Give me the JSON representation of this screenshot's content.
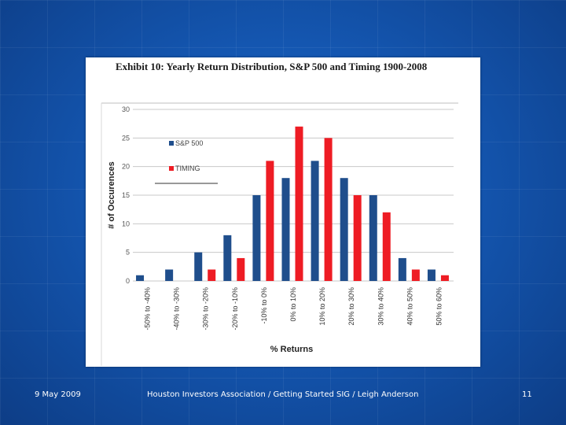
{
  "chart_data": {
    "type": "bar",
    "title": "Exhibit 10: Yearly Return Distribution, S&P 500 and Timing 1900-2008",
    "xlabel": "% Returns",
    "ylabel": "# of Occurences",
    "ylim": [
      0,
      30
    ],
    "yticks": [
      "0",
      "5",
      "10",
      "15",
      "20",
      "25",
      "30"
    ],
    "grid": true,
    "legend_position": "top-left",
    "categories": [
      "-50% to -40%",
      "-40% to -30%",
      "-30% to -20%",
      "-20% to -10%",
      "-10% to 0%",
      "0% to 10%",
      "10% to 20%",
      "20% to 30%",
      "30% to 40%",
      "40% to 50%",
      "50% to 60%"
    ],
    "series": [
      {
        "name": "S&P 500",
        "color": "#1f4e8c",
        "values": [
          1,
          2,
          5,
          8,
          15,
          18,
          21,
          18,
          15,
          4,
          2
        ]
      },
      {
        "name": "TIMING",
        "color": "#ee1c24",
        "values": [
          0,
          0,
          2,
          4,
          21,
          27,
          25,
          15,
          12,
          2,
          1
        ]
      }
    ]
  },
  "footer": {
    "date": "9 May 2009",
    "center": "Houston Investors Association / Getting Started SIG / Leigh Anderson",
    "page": "11"
  }
}
